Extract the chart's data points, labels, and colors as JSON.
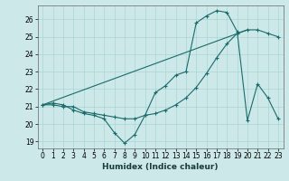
{
  "xlabel": "Humidex (Indice chaleur)",
  "bg_color": "#cce8e8",
  "line_color": "#1a6b6b",
  "xlim": [
    -0.5,
    23.5
  ],
  "ylim": [
    18.6,
    26.8
  ],
  "xticks": [
    0,
    1,
    2,
    3,
    4,
    5,
    6,
    7,
    8,
    9,
    10,
    11,
    12,
    13,
    14,
    15,
    16,
    17,
    18,
    19,
    20,
    21,
    22,
    23
  ],
  "yticks": [
    19,
    20,
    21,
    22,
    23,
    24,
    25,
    26
  ],
  "line1_x": [
    0,
    1,
    2,
    3,
    4,
    5,
    6,
    7,
    8,
    9,
    10,
    11,
    12,
    13,
    14,
    15,
    16,
    17,
    18,
    19,
    20,
    21,
    22,
    23
  ],
  "line1_y": [
    21.1,
    21.2,
    21.1,
    20.8,
    20.6,
    20.5,
    20.3,
    19.5,
    18.9,
    19.4,
    20.5,
    21.8,
    22.2,
    22.8,
    23.0,
    25.8,
    26.2,
    26.5,
    26.4,
    25.3,
    20.2,
    22.3,
    21.5,
    20.3
  ],
  "line2_x": [
    0,
    1,
    2,
    3,
    4,
    5,
    6,
    7,
    8,
    9,
    10,
    11,
    12,
    13,
    14,
    15,
    16,
    17,
    18,
    19,
    20,
    21,
    22,
    23
  ],
  "line2_y": [
    21.1,
    21.1,
    21.0,
    21.0,
    20.7,
    20.6,
    20.5,
    20.4,
    20.3,
    20.3,
    20.5,
    20.6,
    20.8,
    21.1,
    21.5,
    22.1,
    22.9,
    23.8,
    24.6,
    25.2,
    25.4,
    25.4,
    25.2,
    25.0
  ],
  "line3_x": [
    0,
    20
  ],
  "line3_y": [
    21.1,
    25.4
  ],
  "grid_color": "#aad4d4",
  "tick_fontsize": 5.5,
  "xlabel_fontsize": 6.5
}
